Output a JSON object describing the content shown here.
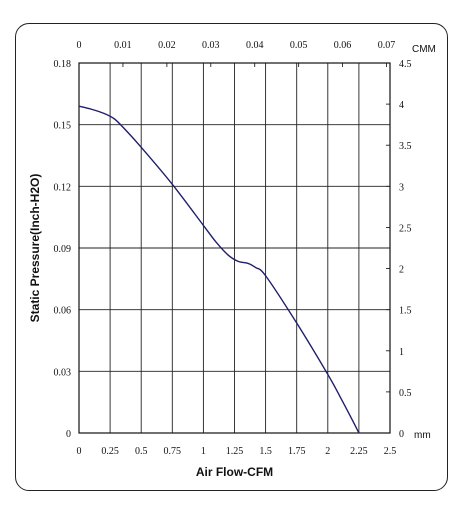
{
  "chart_data": {
    "type": "line",
    "title": "",
    "xlabel": "Air Flow-CFM",
    "ylabel": "Static Pressure(Inch-H2O)",
    "secondary_x_unit": "CMM",
    "secondary_y_unit": "mm",
    "x_ticks": [
      "0",
      "0.25",
      "0.5",
      "0.75",
      "1",
      "1.25",
      "1.5",
      "1.75",
      "2",
      "2.25",
      "2.5"
    ],
    "y_ticks": [
      "0",
      "0.03",
      "0.06",
      "0.09",
      "0.12",
      "0.15",
      "0.18"
    ],
    "top_ticks": [
      "0",
      "0.01",
      "0.02",
      "0.03",
      "0.04",
      "0.05",
      "0.06",
      "0.07"
    ],
    "right_ticks": [
      "0",
      "0.5",
      "1",
      "1.5",
      "2",
      "2.5",
      "3",
      "3.5",
      "4",
      "4.5"
    ],
    "xlim": [
      0,
      2.5
    ],
    "ylim": [
      0,
      0.18
    ],
    "top_xlim": [
      0,
      0.0708
    ],
    "right_ylim": [
      0,
      4.5
    ],
    "grid": true,
    "series": [
      {
        "color": "#1f1f6e",
        "x": [
          0,
          0.1,
          0.2,
          0.28,
          0.35,
          0.5,
          0.75,
          1.0,
          1.1,
          1.2,
          1.28,
          1.36,
          1.42,
          1.5,
          1.75,
          2.0,
          2.1,
          2.2,
          2.25
        ],
        "y": [
          0.159,
          0.1575,
          0.1555,
          0.153,
          0.149,
          0.139,
          0.121,
          0.101,
          0.093,
          0.0865,
          0.0835,
          0.0825,
          0.0805,
          0.0765,
          0.0535,
          0.0285,
          0.0175,
          0.006,
          0.0
        ]
      }
    ]
  }
}
